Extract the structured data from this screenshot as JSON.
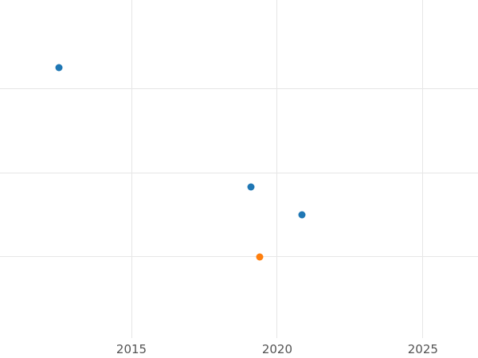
{
  "chart_data": {
    "type": "scatter",
    "title": "",
    "xlabel": "",
    "ylabel": "",
    "x_tick_labels": [
      "2015",
      "2020",
      "2025"
    ],
    "x_tick_values": [
      2015,
      2020,
      2025
    ],
    "y_gridline_values": [
      1,
      2,
      3
    ],
    "xlim": [
      2010.49,
      2026.89
    ],
    "ylim": [
      0.03,
      4.06
    ],
    "grid": true,
    "legend": false,
    "series": [
      {
        "name": "blue-series",
        "color": "#1f77b4",
        "points": [
          {
            "x": 2012.5,
            "y": 3.25
          },
          {
            "x": 2019.1,
            "y": 1.83
          },
          {
            "x": 2020.85,
            "y": 1.5
          }
        ]
      },
      {
        "name": "orange-series",
        "color": "#ff7f0e",
        "points": [
          {
            "x": 2019.4,
            "y": 1.0
          }
        ]
      }
    ]
  },
  "style": {
    "grid_color": "#e6e6e6",
    "tick_color": "#535353",
    "background": "#ffffff"
  }
}
